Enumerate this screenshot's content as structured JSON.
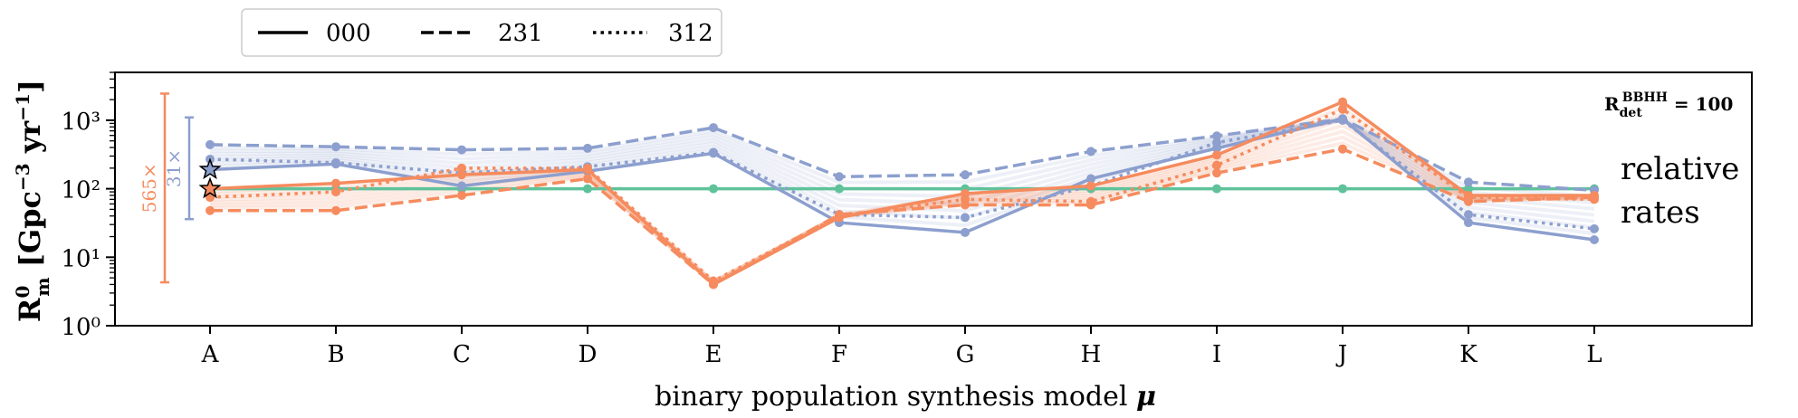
{
  "chart_data": {
    "type": "line",
    "xlabel": "binary population synthesis model μ",
    "ylabel": "R⁰ₘ [Gpc⁻³ yr⁻¹]",
    "yscale": "log",
    "ylim": [
      1,
      5000
    ],
    "categories": [
      "A",
      "B",
      "C",
      "D",
      "E",
      "F",
      "G",
      "H",
      "I",
      "J",
      "K",
      "L"
    ],
    "yticks": [
      {
        "value": 1,
        "label": "10⁰"
      },
      {
        "value": 10,
        "label": "10¹"
      },
      {
        "value": 100,
        "label": "10²"
      },
      {
        "value": 1000,
        "label": "10³"
      }
    ],
    "legend": {
      "placement": "top-left outside",
      "entries": [
        {
          "label": "000",
          "style": "solid"
        },
        {
          "label": "231",
          "style": "dashed"
        },
        {
          "label": "312",
          "style": "dotted"
        }
      ]
    },
    "colors": {
      "blue": "#8c9fce",
      "orange": "#f58b5e",
      "green": "#5fc29a"
    },
    "series": [
      {
        "color": "green",
        "style": "solid",
        "values": [
          100,
          100,
          100,
          100,
          100,
          100,
          100,
          100,
          100,
          100,
          100,
          100
        ]
      },
      {
        "color": "blue",
        "style": "solid",
        "values": [
          190,
          230,
          110,
          180,
          330,
          32,
          23,
          140,
          390,
          1050,
          32,
          18
        ]
      },
      {
        "color": "blue",
        "style": "dashed",
        "values": [
          440,
          410,
          370,
          390,
          780,
          150,
          160,
          350,
          590,
          1050,
          125,
          95
        ]
      },
      {
        "color": "blue",
        "style": "dotted",
        "values": [
          270,
          240,
          170,
          210,
          340,
          42,
          38,
          110,
          470,
          1000,
          42,
          26
        ]
      },
      {
        "color": "orange",
        "style": "solid",
        "values": [
          100,
          120,
          160,
          190,
          4,
          38,
          85,
          110,
          310,
          1850,
          80,
          80
        ]
      },
      {
        "color": "orange",
        "style": "dashed",
        "values": [
          48,
          48,
          80,
          140,
          4,
          42,
          58,
          58,
          170,
          380,
          65,
          75
        ]
      },
      {
        "color": "orange",
        "style": "dotted",
        "values": [
          75,
          90,
          200,
          200,
          4.5,
          40,
          70,
          65,
          220,
          1450,
          75,
          70
        ]
      }
    ],
    "annotations": {
      "rdet": "R_det^BBHH = 100",
      "relative_line1": "relative",
      "relative_line2": "rates",
      "bracket_blue": "31×",
      "bracket_orange": "565×"
    },
    "brackets": {
      "blue": {
        "low": 36,
        "high": 1100
      },
      "orange": {
        "low": 4.3,
        "high": 2450
      }
    },
    "stars": [
      {
        "color": "blue",
        "value": 190
      },
      {
        "color": "orange",
        "value": 100
      }
    ]
  }
}
